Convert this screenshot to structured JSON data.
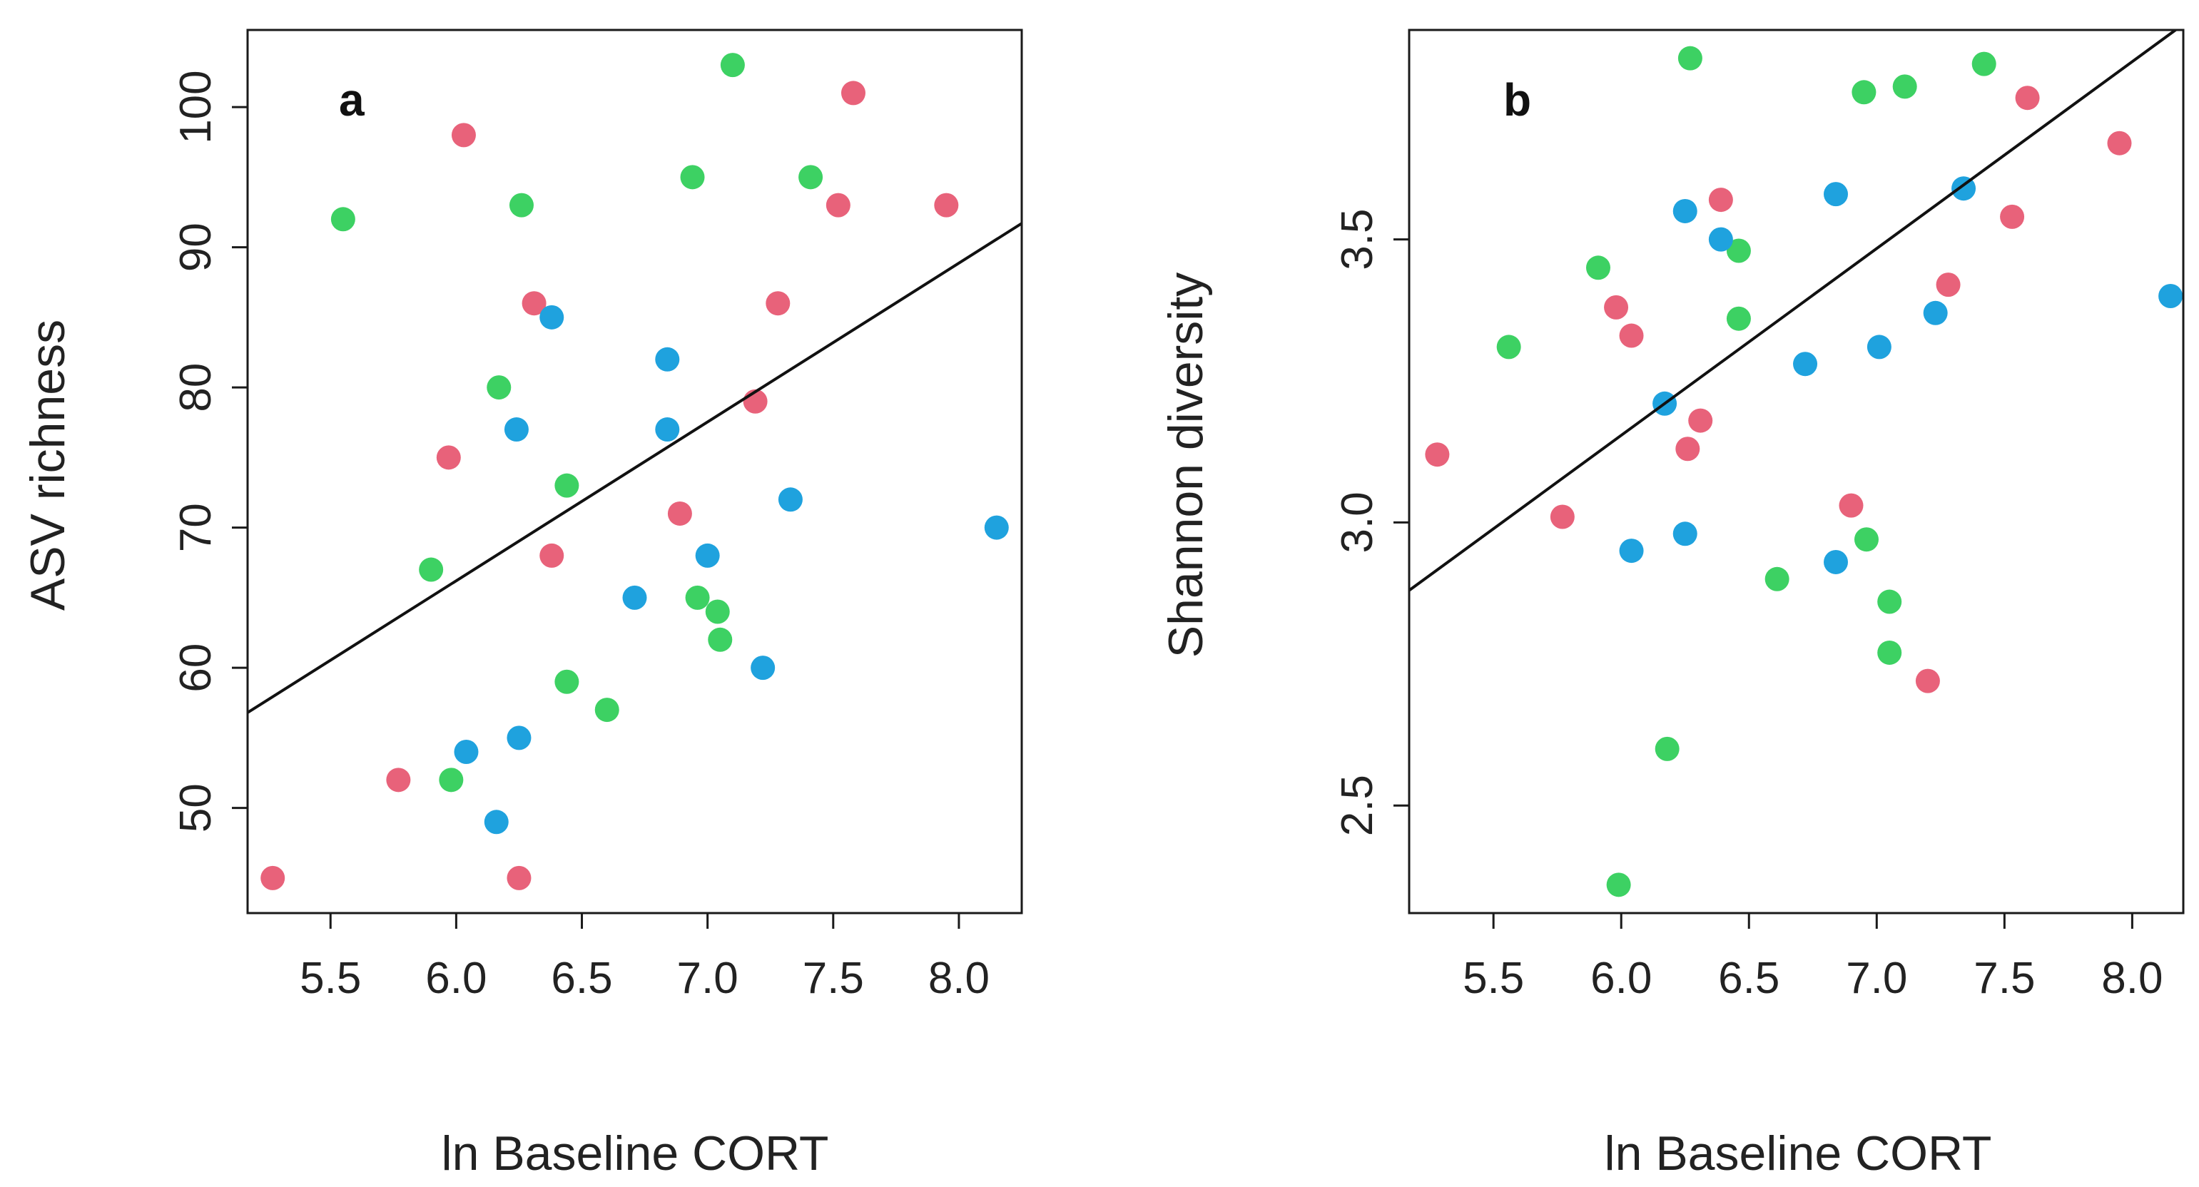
{
  "chart_data": [
    {
      "type": "scatter",
      "panel_label": "a",
      "xlabel": "ln Baseline CORT",
      "ylabel": "ASV richness",
      "xlim": [
        5.17,
        8.25
      ],
      "ylim": [
        42.5,
        105.5
      ],
      "xticks": [
        "5.5",
        "6.0",
        "6.5",
        "7.0",
        "7.5",
        "8.0"
      ],
      "yticks": [
        "50",
        "60",
        "70",
        "80",
        "90",
        "100"
      ],
      "fit_line": {
        "x": [
          5.17,
          8.25
        ],
        "y": [
          56.8,
          91.7
        ]
      },
      "series": [
        {
          "name": "pink",
          "color": "#E8627A",
          "points": [
            [
              5.27,
              45
            ],
            [
              5.77,
              52
            ],
            [
              5.97,
              75
            ],
            [
              6.03,
              98
            ],
            [
              6.25,
              45
            ],
            [
              6.31,
              86
            ],
            [
              6.38,
              68
            ],
            [
              6.89,
              71
            ],
            [
              7.19,
              79
            ],
            [
              7.28,
              86
            ],
            [
              7.52,
              93
            ],
            [
              7.58,
              101
            ],
            [
              7.95,
              93
            ]
          ]
        },
        {
          "name": "green",
          "color": "#3DD163",
          "points": [
            [
              5.55,
              92
            ],
            [
              5.9,
              67
            ],
            [
              5.98,
              52
            ],
            [
              6.17,
              80
            ],
            [
              6.26,
              93
            ],
            [
              6.44,
              73
            ],
            [
              6.44,
              59
            ],
            [
              6.6,
              57
            ],
            [
              6.94,
              95
            ],
            [
              6.96,
              65
            ],
            [
              7.04,
              64
            ],
            [
              7.05,
              62
            ],
            [
              7.1,
              103
            ],
            [
              7.41,
              95
            ]
          ]
        },
        {
          "name": "blue",
          "color": "#1FA2DE",
          "points": [
            [
              6.04,
              54
            ],
            [
              6.16,
              49
            ],
            [
              6.24,
              77
            ],
            [
              6.25,
              55
            ],
            [
              6.38,
              85
            ],
            [
              6.71,
              65
            ],
            [
              6.84,
              82
            ],
            [
              6.84,
              77
            ],
            [
              7.0,
              68
            ],
            [
              7.22,
              60
            ],
            [
              7.33,
              72
            ],
            [
              8.15,
              70
            ]
          ]
        }
      ]
    },
    {
      "type": "scatter",
      "panel_label": "b",
      "xlabel": "ln Baseline CORT",
      "ylabel": "Shannon diversity",
      "xlim": [
        5.17,
        8.2
      ],
      "ylim": [
        2.31,
        3.87
      ],
      "xticks": [
        "5.5",
        "6.0",
        "6.5",
        "7.0",
        "7.5",
        "8.0"
      ],
      "yticks": [
        "2.5",
        "3.0",
        "3.5"
      ],
      "fit_line": {
        "x": [
          5.17,
          8.2
        ],
        "y": [
          2.88,
          3.88
        ]
      },
      "series": [
        {
          "name": "pink",
          "color": "#E8627A",
          "points": [
            [
              5.28,
              3.12
            ],
            [
              5.77,
              3.01
            ],
            [
              5.98,
              3.38
            ],
            [
              6.04,
              3.33
            ],
            [
              6.26,
              3.13
            ],
            [
              6.31,
              3.18
            ],
            [
              6.39,
              3.57
            ],
            [
              6.9,
              3.03
            ],
            [
              7.2,
              2.72
            ],
            [
              7.28,
              3.42
            ],
            [
              7.53,
              3.54
            ],
            [
              7.59,
              3.75
            ],
            [
              7.95,
              3.67
            ]
          ]
        },
        {
          "name": "green",
          "color": "#3DD163",
          "points": [
            [
              5.56,
              3.31
            ],
            [
              5.91,
              3.45
            ],
            [
              5.99,
              2.36
            ],
            [
              6.18,
              2.6
            ],
            [
              6.27,
              3.82
            ],
            [
              6.46,
              3.48
            ],
            [
              6.46,
              3.36
            ],
            [
              6.61,
              2.9
            ],
            [
              6.95,
              3.76
            ],
            [
              6.96,
              2.97
            ],
            [
              7.05,
              2.86
            ],
            [
              7.05,
              2.77
            ],
            [
              7.11,
              3.77
            ],
            [
              7.42,
              3.81
            ]
          ]
        },
        {
          "name": "blue",
          "color": "#1FA2DE",
          "points": [
            [
              6.04,
              2.95
            ],
            [
              6.17,
              3.21
            ],
            [
              6.25,
              3.55
            ],
            [
              6.25,
              2.98
            ],
            [
              6.39,
              3.5
            ],
            [
              6.72,
              3.28
            ],
            [
              6.84,
              3.58
            ],
            [
              6.84,
              2.93
            ],
            [
              7.01,
              3.31
            ],
            [
              7.23,
              3.37
            ],
            [
              7.34,
              3.59
            ],
            [
              8.15,
              3.4
            ]
          ]
        }
      ]
    }
  ]
}
